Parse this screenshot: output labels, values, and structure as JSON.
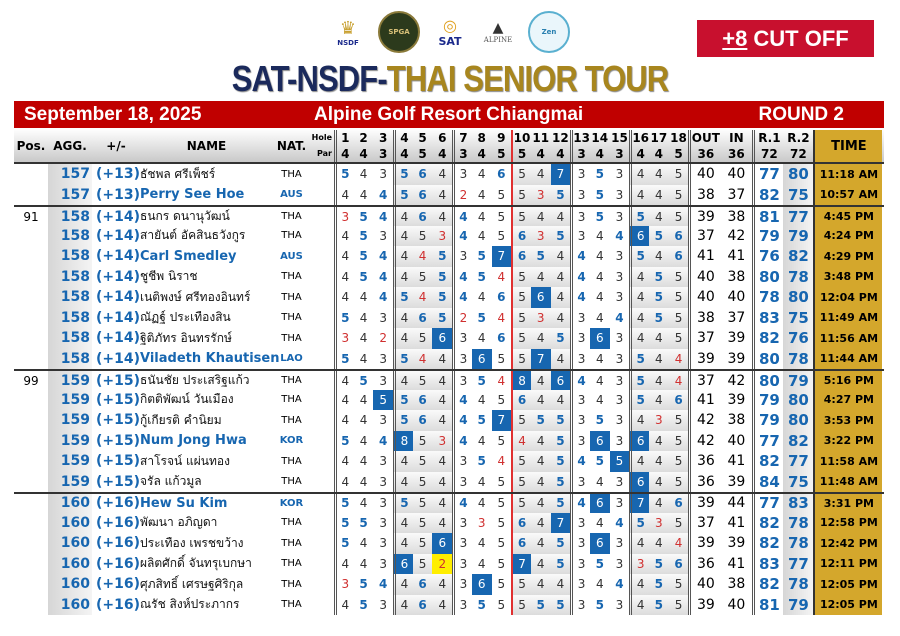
{
  "logos": [
    {
      "name": "nsdf-logo",
      "text": "NSDF"
    },
    {
      "name": "spga-logo",
      "text": "SPGA"
    },
    {
      "name": "sat-logo",
      "text": "SAT"
    },
    {
      "name": "alpine-logo",
      "text": "ALPINE"
    },
    {
      "name": "zen-logo",
      "text": "Zen"
    }
  ],
  "cutoff": {
    "value": "+8",
    "label": "CUT OFF"
  },
  "title": {
    "part1": "SAT-NSDF-",
    "part2": "THAI SENIOR TOUR"
  },
  "banner": {
    "date": "September 18, 2025",
    "venue": "Alpine Golf Resort Chiangmai",
    "round": "ROUND 2"
  },
  "header": {
    "pos": "Pos.",
    "agg": "AGG.",
    "pm": "+/-",
    "name": "NAME",
    "nat": "NAT.",
    "hole": "Hole",
    "par": "Par",
    "out": "OUT",
    "in": "IN",
    "r1": "R.1",
    "r2": "R.2",
    "time": "TIME",
    "out_par": "36",
    "in_par": "36",
    "r1_par": "72",
    "r2_par": "72"
  },
  "pars": [
    4,
    4,
    3,
    4,
    5,
    4,
    3,
    4,
    5,
    5,
    4,
    4,
    3,
    4,
    3,
    4,
    4,
    5
  ],
  "colors": {
    "over": "#1766b0",
    "under": "#d03030",
    "eagle": "#ffee00",
    "time_bg": "#d4a72c",
    "banner": "#c00000"
  },
  "players": [
    {
      "pos": "",
      "agg": "157",
      "pm": "(+13)",
      "name": "ธัชพล  ศรีเพ็ชร์",
      "nat": "THA",
      "scores": [
        5,
        4,
        3,
        5,
        6,
        4,
        3,
        4,
        6,
        5,
        4,
        7,
        3,
        5,
        3,
        4,
        4,
        5
      ],
      "out": "40",
      "in": "40",
      "r1": "77",
      "r2": "80",
      "time": "11:18 AM"
    },
    {
      "pos": "",
      "agg": "157",
      "pm": "(+13)",
      "name": "Perry  See Hoe",
      "nat": "AUS",
      "scores": [
        4,
        4,
        4,
        5,
        6,
        4,
        2,
        4,
        5,
        5,
        3,
        5,
        3,
        5,
        3,
        4,
        4,
        5
      ],
      "out": "38",
      "in": "37",
      "r1": "82",
      "r2": "75",
      "time": "10:57 AM"
    },
    {
      "pos": "91",
      "agg": "158",
      "pm": "(+14)",
      "name": "ธนกร  ดนานุวัฒน์",
      "nat": "THA",
      "scores": [
        3,
        5,
        4,
        4,
        6,
        4,
        4,
        4,
        5,
        5,
        4,
        4,
        3,
        5,
        3,
        5,
        4,
        5
      ],
      "out": "39",
      "in": "38",
      "r1": "81",
      "r2": "77",
      "time": "4:45 PM"
    },
    {
      "pos": "",
      "agg": "158",
      "pm": "(+14)",
      "name": "สายันต์  อัคสินธวังกูร",
      "nat": "THA",
      "scores": [
        4,
        5,
        3,
        4,
        5,
        3,
        4,
        4,
        5,
        6,
        3,
        5,
        3,
        4,
        4,
        6,
        5,
        6
      ],
      "out": "37",
      "in": "42",
      "r1": "79",
      "r2": "79",
      "time": "4:24 PM"
    },
    {
      "pos": "",
      "agg": "158",
      "pm": "(+14)",
      "name": "Carl  Smedley",
      "nat": "AUS",
      "scores": [
        4,
        5,
        4,
        4,
        4,
        5,
        3,
        5,
        7,
        6,
        5,
        4,
        4,
        4,
        3,
        5,
        4,
        6
      ],
      "out": "41",
      "in": "41",
      "r1": "76",
      "r2": "82",
      "time": "4:29 PM"
    },
    {
      "pos": "",
      "agg": "158",
      "pm": "(+14)",
      "name": "ชูชีพ  นิราช",
      "nat": "THA",
      "scores": [
        4,
        5,
        4,
        4,
        5,
        5,
        4,
        5,
        4,
        5,
        4,
        4,
        4,
        4,
        3,
        4,
        5,
        5
      ],
      "out": "40",
      "in": "38",
      "r1": "80",
      "r2": "78",
      "time": "3:48 PM"
    },
    {
      "pos": "",
      "agg": "158",
      "pm": "(+14)",
      "name": "เนติพงษ์  ศรีทองอินทร์",
      "nat": "THA",
      "scores": [
        4,
        4,
        4,
        5,
        4,
        5,
        4,
        4,
        6,
        5,
        6,
        4,
        4,
        4,
        3,
        4,
        5,
        5
      ],
      "out": "40",
      "in": "40",
      "r1": "78",
      "r2": "80",
      "time": "12:04 PM"
    },
    {
      "pos": "",
      "agg": "158",
      "pm": "(+14)",
      "name": "ณัฏฐ์  ประเทืองสิน",
      "nat": "THA",
      "scores": [
        5,
        4,
        3,
        4,
        6,
        5,
        2,
        5,
        4,
        5,
        3,
        4,
        3,
        4,
        4,
        4,
        5,
        5
      ],
      "out": "38",
      "in": "37",
      "r1": "83",
      "r2": "75",
      "time": "11:49 AM"
    },
    {
      "pos": "",
      "agg": "158",
      "pm": "(+14)",
      "name": "ฐิติภัทร  อินทรรักษ์",
      "nat": "THA",
      "scores": [
        3,
        4,
        2,
        4,
        5,
        6,
        3,
        4,
        6,
        5,
        4,
        5,
        3,
        6,
        3,
        4,
        4,
        5
      ],
      "out": "37",
      "in": "39",
      "r1": "82",
      "r2": "76",
      "time": "11:56 AM"
    },
    {
      "pos": "",
      "agg": "158",
      "pm": "(+14)",
      "name": "Viladeth  Khautisen",
      "nat": "LAO",
      "scores": [
        5,
        4,
        3,
        5,
        4,
        4,
        3,
        6,
        5,
        5,
        7,
        4,
        3,
        4,
        3,
        5,
        4,
        4
      ],
      "out": "39",
      "in": "39",
      "r1": "80",
      "r2": "78",
      "time": "11:44 AM"
    },
    {
      "pos": "99",
      "agg": "159",
      "pm": "(+15)",
      "name": "ธนันชัย  ประเสริฐแก้ว",
      "nat": "THA",
      "scores": [
        4,
        5,
        3,
        4,
        5,
        4,
        3,
        5,
        4,
        8,
        4,
        6,
        4,
        4,
        3,
        5,
        4,
        4
      ],
      "out": "37",
      "in": "42",
      "r1": "80",
      "r2": "79",
      "time": "5:16 PM"
    },
    {
      "pos": "",
      "agg": "159",
      "pm": "(+15)",
      "name": "กิตติพัฒน์  วันเมือง",
      "nat": "THA",
      "scores": [
        4,
        4,
        5,
        5,
        6,
        4,
        4,
        4,
        5,
        6,
        4,
        4,
        3,
        4,
        3,
        5,
        4,
        6
      ],
      "out": "41",
      "in": "39",
      "r1": "79",
      "r2": "80",
      "time": "4:27 PM"
    },
    {
      "pos": "",
      "agg": "159",
      "pm": "(+15)",
      "name": "กู้เกียรติ  คำนิยม",
      "nat": "THA",
      "scores": [
        4,
        4,
        3,
        5,
        6,
        4,
        4,
        5,
        7,
        5,
        5,
        5,
        3,
        5,
        3,
        4,
        3,
        5
      ],
      "out": "42",
      "in": "38",
      "r1": "79",
      "r2": "80",
      "time": "3:53 PM"
    },
    {
      "pos": "",
      "agg": "159",
      "pm": "(+15)",
      "name": "Num Jong Hwa",
      "nat": "KOR",
      "scores": [
        5,
        4,
        4,
        8,
        5,
        3,
        4,
        4,
        5,
        4,
        4,
        5,
        3,
        6,
        3,
        6,
        4,
        5
      ],
      "out": "42",
      "in": "40",
      "r1": "77",
      "r2": "82",
      "time": "3:22 PM"
    },
    {
      "pos": "",
      "agg": "159",
      "pm": "(+15)",
      "name": "สาโรจน์  แผ่นทอง",
      "nat": "THA",
      "scores": [
        4,
        4,
        3,
        4,
        5,
        4,
        3,
        5,
        4,
        5,
        4,
        5,
        4,
        5,
        5,
        4,
        4,
        5
      ],
      "out": "36",
      "in": "41",
      "r1": "82",
      "r2": "77",
      "time": "11:58 AM"
    },
    {
      "pos": "",
      "agg": "159",
      "pm": "(+15)",
      "name": "จรัล  แก้วมูล",
      "nat": "THA",
      "scores": [
        4,
        4,
        3,
        4,
        5,
        4,
        3,
        4,
        5,
        5,
        4,
        5,
        3,
        4,
        3,
        6,
        4,
        5
      ],
      "out": "36",
      "in": "39",
      "r1": "84",
      "r2": "75",
      "time": "11:48 AM"
    },
    {
      "pos": "",
      "agg": "160",
      "pm": "(+16)",
      "name": "Hew Su Kim",
      "nat": "KOR",
      "scores": [
        5,
        4,
        3,
        5,
        5,
        4,
        4,
        4,
        5,
        5,
        4,
        5,
        4,
        6,
        3,
        7,
        4,
        6
      ],
      "out": "39",
      "in": "44",
      "r1": "77",
      "r2": "83",
      "time": "3:31 PM"
    },
    {
      "pos": "",
      "agg": "160",
      "pm": "(+16)",
      "name": "พัฒนา  อภิญดา",
      "nat": "THA",
      "scores": [
        5,
        5,
        3,
        4,
        5,
        4,
        3,
        3,
        5,
        6,
        4,
        7,
        3,
        4,
        4,
        5,
        3,
        5
      ],
      "out": "37",
      "in": "41",
      "r1": "82",
      "r2": "78",
      "time": "12:58 PM"
    },
    {
      "pos": "",
      "agg": "160",
      "pm": "(+16)",
      "name": "ประเทือง  เพรชขว้าง",
      "nat": "THA",
      "scores": [
        5,
        4,
        3,
        4,
        5,
        6,
        3,
        4,
        5,
        6,
        4,
        5,
        3,
        6,
        3,
        4,
        4,
        4
      ],
      "out": "39",
      "in": "39",
      "r1": "82",
      "r2": "78",
      "time": "12:42 PM"
    },
    {
      "pos": "",
      "agg": "160",
      "pm": "(+16)",
      "name": "ผลิตศักดิ์  จันทรุเบกษา",
      "nat": "THA",
      "scores": [
        4,
        4,
        3,
        6,
        5,
        2,
        3,
        4,
        5,
        7,
        4,
        5,
        3,
        5,
        3,
        3,
        5,
        6
      ],
      "out": "36",
      "in": "41",
      "r1": "83",
      "r2": "77",
      "time": "12:11 PM"
    },
    {
      "pos": "",
      "agg": "160",
      "pm": "(+16)",
      "name": "ศุภสิทธิ์  เศรษฐศิริกุล",
      "nat": "THA",
      "scores": [
        3,
        5,
        4,
        4,
        6,
        4,
        3,
        6,
        5,
        5,
        4,
        4,
        3,
        4,
        4,
        4,
        5,
        5
      ],
      "out": "40",
      "in": "38",
      "r1": "82",
      "r2": "78",
      "time": "12:05 PM"
    },
    {
      "pos": "",
      "agg": "160",
      "pm": "(+16)",
      "name": "ณรัช  สิงห์ประภากร",
      "nat": "THA",
      "scores": [
        4,
        5,
        3,
        4,
        6,
        4,
        3,
        5,
        5,
        5,
        5,
        5,
        3,
        5,
        3,
        4,
        5,
        5
      ],
      "out": "39",
      "in": "40",
      "r1": "81",
      "r2": "79",
      "time": "12:05 PM"
    }
  ]
}
